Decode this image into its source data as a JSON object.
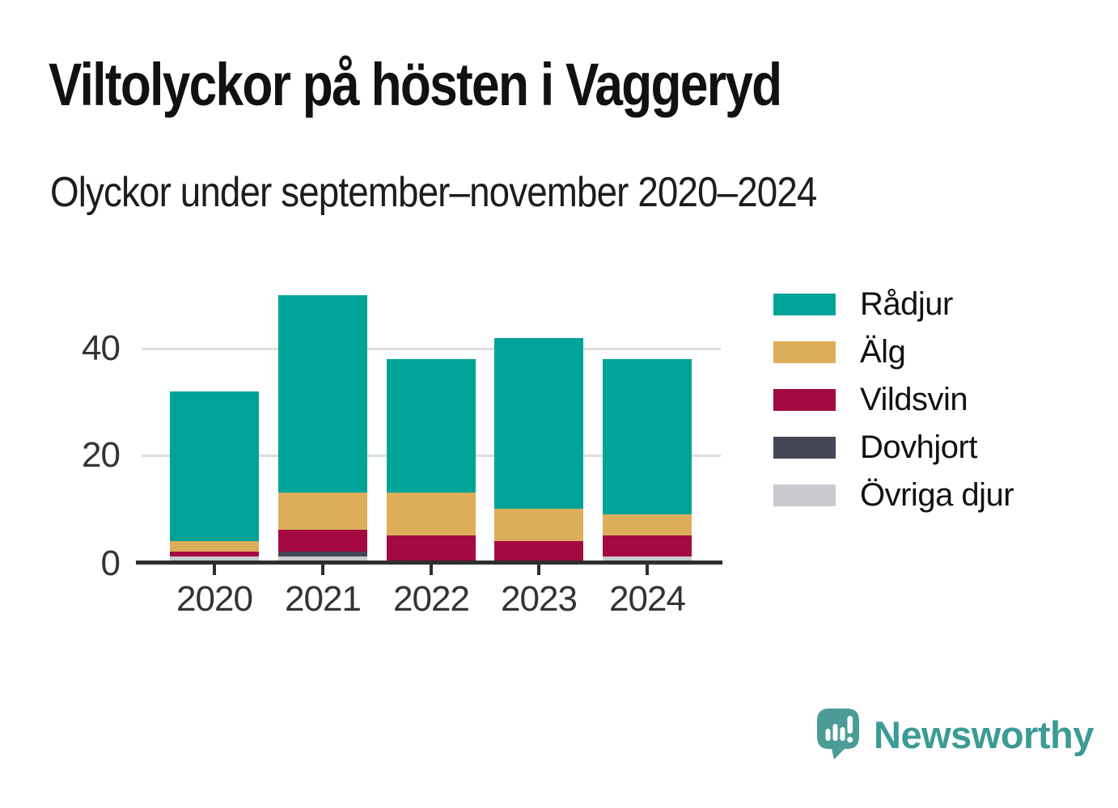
{
  "title": "Viltolyckor på hösten i Vaggeryd",
  "subtitle": "Olyckor under september–november 2020–2024",
  "chart_data": {
    "type": "bar",
    "stacked": true,
    "title": "Viltolyckor på hösten i Vaggeryd",
    "subtitle": "Olyckor under september–november 2020–2024",
    "categories": [
      "2020",
      "2021",
      "2022",
      "2023",
      "2024"
    ],
    "series": [
      {
        "name": "Rådjur",
        "color": "#00a398",
        "values": [
          28,
          37,
          25,
          32,
          29
        ]
      },
      {
        "name": "Älg",
        "color": "#dcae5a",
        "values": [
          2,
          7,
          8,
          6,
          4
        ]
      },
      {
        "name": "Vildsvin",
        "color": "#a40942",
        "values": [
          1,
          4,
          5,
          4,
          4
        ]
      },
      {
        "name": "Dovhjort",
        "color": "#454656",
        "values": [
          0,
          1,
          0,
          0,
          0
        ]
      },
      {
        "name": "Övriga djur",
        "color": "#c9c9d0",
        "values": [
          1,
          1,
          0,
          0,
          1
        ]
      }
    ],
    "stack_order": "first-series-on-top",
    "totals": [
      32,
      50,
      38,
      42,
      38
    ],
    "xlabel": "",
    "ylabel": "",
    "y_ticks": [
      0,
      20,
      40
    ],
    "ylim": [
      0,
      52
    ],
    "grid": "horizontal",
    "gridline_color": "#dddddd",
    "axis_color": "#2e2e2e",
    "legend_position": "right"
  },
  "branding": {
    "logo_text": "Newsworthy",
    "logo_color": "#3c9b94",
    "logo_icon": "newsworthy-speech-bubble-chart-icon"
  }
}
